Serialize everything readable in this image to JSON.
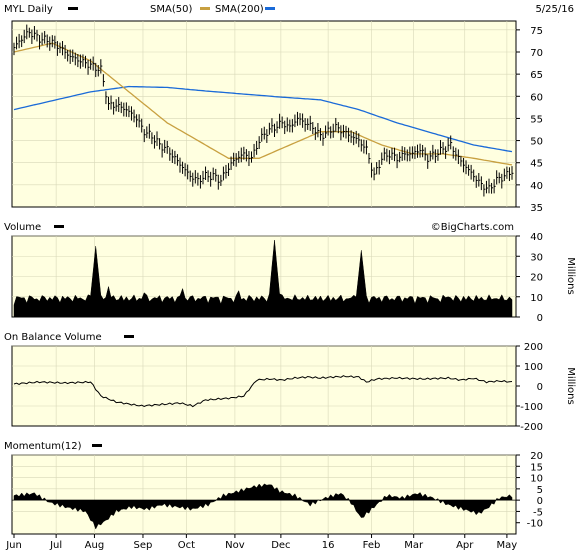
{
  "header": {
    "date": "5/25/16"
  },
  "watermark": "©BigCharts.com",
  "colors": {
    "plot_bg": "#ffffe0",
    "price": "#000000",
    "sma50": "#c8a040",
    "sma200": "#1a6ad8",
    "volume": "#000000",
    "obv": "#000000",
    "momentum": "#000000"
  },
  "x_axis": {
    "tick_labels": [
      "Jun",
      "Jul",
      "Aug",
      "Sep",
      "Oct",
      "Nov",
      "Dec",
      "16",
      "Feb",
      "Mar",
      "Apr",
      "May"
    ]
  },
  "chart_data": [
    {
      "type": "ohlc",
      "legend": [
        {
          "label": "MYL Daily",
          "color": "#000000"
        },
        {
          "label": "SMA(50)",
          "color": "#c8a040"
        },
        {
          "label": "SMA(200)",
          "color": "#1a6ad8"
        }
      ],
      "ylim": [
        35,
        77
      ],
      "yticks": [
        35,
        40,
        45,
        50,
        55,
        60,
        65,
        70,
        75
      ],
      "price_anchors": [
        [
          0,
          71
        ],
        [
          3,
          73
        ],
        [
          6,
          74.5
        ],
        [
          10,
          73
        ],
        [
          14,
          72.5
        ],
        [
          18,
          71
        ],
        [
          22,
          69
        ],
        [
          26,
          68
        ],
        [
          30,
          67
        ],
        [
          34,
          66
        ],
        [
          37,
          58
        ],
        [
          40,
          58
        ],
        [
          44,
          57
        ],
        [
          48,
          55
        ],
        [
          51,
          52
        ],
        [
          54,
          51
        ],
        [
          57,
          49
        ],
        [
          60,
          48
        ],
        [
          63,
          46
        ],
        [
          66,
          44
        ],
        [
          69,
          42
        ],
        [
          72,
          41
        ],
        [
          75,
          42
        ],
        [
          78,
          42
        ],
        [
          81,
          41
        ],
        [
          84,
          44
        ],
        [
          87,
          46
        ],
        [
          90,
          47
        ],
        [
          93,
          46
        ],
        [
          96,
          50
        ],
        [
          99,
          52
        ],
        [
          102,
          53
        ],
        [
          105,
          54
        ],
        [
          108,
          53
        ],
        [
          111,
          55
        ],
        [
          114,
          54
        ],
        [
          117,
          53
        ],
        [
          120,
          51
        ],
        [
          123,
          52
        ],
        [
          126,
          53
        ],
        [
          129,
          52
        ],
        [
          132,
          51
        ],
        [
          135,
          50
        ],
        [
          138,
          48
        ],
        [
          141,
          42
        ],
        [
          144,
          46
        ],
        [
          147,
          47
        ],
        [
          150,
          46
        ],
        [
          153,
          47
        ],
        [
          156,
          47
        ],
        [
          159,
          48
        ],
        [
          162,
          46
        ],
        [
          165,
          47
        ],
        [
          168,
          48
        ],
        [
          171,
          49
        ],
        [
          174,
          46
        ],
        [
          177,
          44
        ],
        [
          180,
          42
        ],
        [
          183,
          40
        ],
        [
          186,
          39
        ],
        [
          189,
          41
        ],
        [
          192,
          42
        ],
        [
          195,
          43
        ]
      ],
      "sma50": [
        [
          0,
          70
        ],
        [
          15,
          72
        ],
        [
          30,
          68
        ],
        [
          45,
          61
        ],
        [
          60,
          54
        ],
        [
          72,
          50
        ],
        [
          84,
          46
        ],
        [
          96,
          46
        ],
        [
          108,
          49
        ],
        [
          120,
          52
        ],
        [
          132,
          52
        ],
        [
          144,
          49
        ],
        [
          156,
          47
        ],
        [
          168,
          47
        ],
        [
          180,
          46
        ],
        [
          195,
          44.5
        ]
      ],
      "sma200": [
        [
          0,
          57
        ],
        [
          15,
          59
        ],
        [
          30,
          61
        ],
        [
          45,
          62.2
        ],
        [
          60,
          62
        ],
        [
          75,
          61.2
        ],
        [
          90,
          60.5
        ],
        [
          105,
          59.8
        ],
        [
          120,
          59.2
        ],
        [
          135,
          57
        ],
        [
          150,
          54
        ],
        [
          165,
          51.5
        ],
        [
          180,
          49
        ],
        [
          195,
          47.5
        ]
      ]
    },
    {
      "type": "bar",
      "title": "Volume",
      "ylabel": "Millions",
      "ylim": [
        0,
        40
      ],
      "yticks": [
        0,
        10,
        20,
        30,
        40
      ],
      "baseline": 6,
      "spikes": [
        [
          32,
          35
        ],
        [
          37,
          15
        ],
        [
          51,
          12
        ],
        [
          66,
          14
        ],
        [
          88,
          13
        ],
        [
          102,
          38
        ],
        [
          136,
          33
        ],
        [
          170,
          10
        ],
        [
          183,
          9
        ]
      ]
    },
    {
      "type": "line",
      "title": "On Balance Volume",
      "ylabel": "Millions",
      "ylim": [
        -200,
        200
      ],
      "yticks": [
        -200,
        -100,
        0,
        100,
        200
      ],
      "values": [
        [
          0,
          10
        ],
        [
          10,
          20
        ],
        [
          20,
          15
        ],
        [
          30,
          20
        ],
        [
          34,
          -50
        ],
        [
          40,
          -80
        ],
        [
          45,
          -90
        ],
        [
          50,
          -100
        ],
        [
          55,
          -95
        ],
        [
          60,
          -90
        ],
        [
          65,
          -85
        ],
        [
          70,
          -100
        ],
        [
          75,
          -70
        ],
        [
          80,
          -65
        ],
        [
          85,
          -60
        ],
        [
          90,
          -50
        ],
        [
          95,
          30
        ],
        [
          100,
          35
        ],
        [
          105,
          30
        ],
        [
          110,
          40
        ],
        [
          115,
          45
        ],
        [
          120,
          40
        ],
        [
          125,
          45
        ],
        [
          130,
          48
        ],
        [
          135,
          45
        ],
        [
          138,
          20
        ],
        [
          142,
          35
        ],
        [
          150,
          40
        ],
        [
          160,
          35
        ],
        [
          170,
          40
        ],
        [
          175,
          30
        ],
        [
          180,
          38
        ],
        [
          185,
          20
        ],
        [
          190,
          25
        ],
        [
          195,
          20
        ]
      ]
    },
    {
      "type": "bar",
      "title": "Momentum(12)",
      "ylim": [
        -15,
        20
      ],
      "yticks": [
        -10,
        -5,
        0,
        5,
        10,
        15,
        20
      ],
      "values": [
        [
          0,
          2
        ],
        [
          8,
          3
        ],
        [
          14,
          -1
        ],
        [
          20,
          -3
        ],
        [
          28,
          -5
        ],
        [
          32,
          -12
        ],
        [
          36,
          -9
        ],
        [
          40,
          -5
        ],
        [
          46,
          -3
        ],
        [
          52,
          -4
        ],
        [
          58,
          -2
        ],
        [
          64,
          -3
        ],
        [
          70,
          -4
        ],
        [
          76,
          -2
        ],
        [
          82,
          2
        ],
        [
          88,
          4
        ],
        [
          94,
          6
        ],
        [
          100,
          7
        ],
        [
          104,
          4
        ],
        [
          110,
          2
        ],
        [
          116,
          -2
        ],
        [
          122,
          1
        ],
        [
          128,
          3
        ],
        [
          132,
          -1
        ],
        [
          136,
          -8
        ],
        [
          140,
          -4
        ],
        [
          146,
          2
        ],
        [
          152,
          1
        ],
        [
          158,
          3
        ],
        [
          164,
          1
        ],
        [
          170,
          -2
        ],
        [
          176,
          -4
        ],
        [
          182,
          -6
        ],
        [
          186,
          -3
        ],
        [
          190,
          1
        ],
        [
          195,
          2
        ]
      ]
    }
  ]
}
